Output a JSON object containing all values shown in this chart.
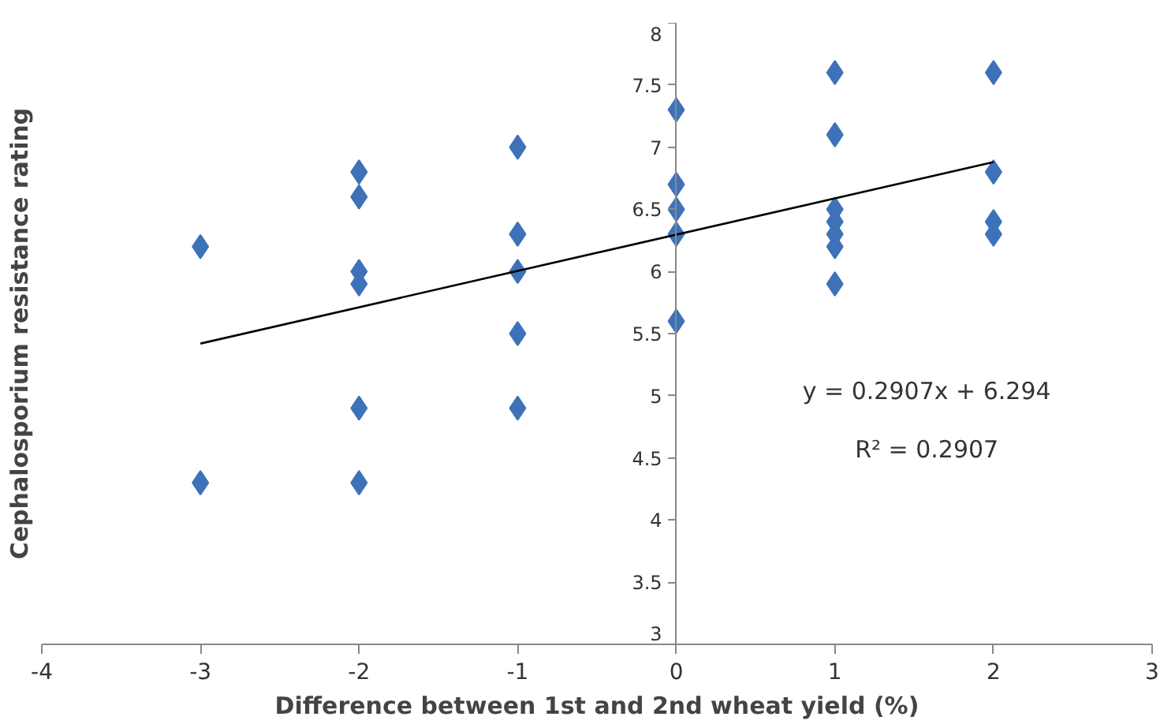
{
  "chart_data": {
    "type": "scatter",
    "xlabel": "Difference between 1st and 2nd wheat yield (%)",
    "ylabel": "Cephalosporium resistance rating",
    "series": [
      {
        "color": "#3e72b8",
        "x": [
          -3,
          -3,
          -2,
          -2,
          -2,
          -2,
          -2,
          -2,
          -1,
          -1,
          -1,
          -1,
          -1,
          0,
          0,
          0,
          0,
          0,
          1,
          1,
          1,
          1,
          1,
          1,
          1,
          2,
          2,
          2,
          2
        ],
        "values": [
          6.2,
          4.3,
          6.8,
          6.6,
          6.0,
          5.9,
          4.9,
          4.3,
          7.0,
          6.3,
          6.0,
          5.5,
          4.9,
          7.3,
          6.7,
          6.5,
          6.3,
          5.6,
          7.6,
          7.1,
          6.5,
          6.4,
          6.3,
          6.2,
          5.9,
          7.6,
          6.8,
          6.4,
          6.3
        ]
      },
      {
        "type": "line",
        "marker": "none",
        "color": "#000000",
        "x": [
          -3,
          2
        ],
        "values": [
          5.42,
          6.88
        ]
      }
    ],
    "xlim": [
      -4,
      3
    ],
    "ylim": [
      3,
      8
    ],
    "xticks": [
      -4,
      -3,
      -2,
      -1,
      0,
      1,
      2,
      3
    ],
    "yticks": [
      3,
      3.5,
      4,
      4.5,
      5,
      5.5,
      6,
      6.5,
      7,
      7.5,
      8
    ],
    "grid": false,
    "marker": "diamond",
    "line_style": "solid",
    "annotations": [
      "y = 0.2907x + 6.294",
      "R² = 0.2907"
    ]
  }
}
